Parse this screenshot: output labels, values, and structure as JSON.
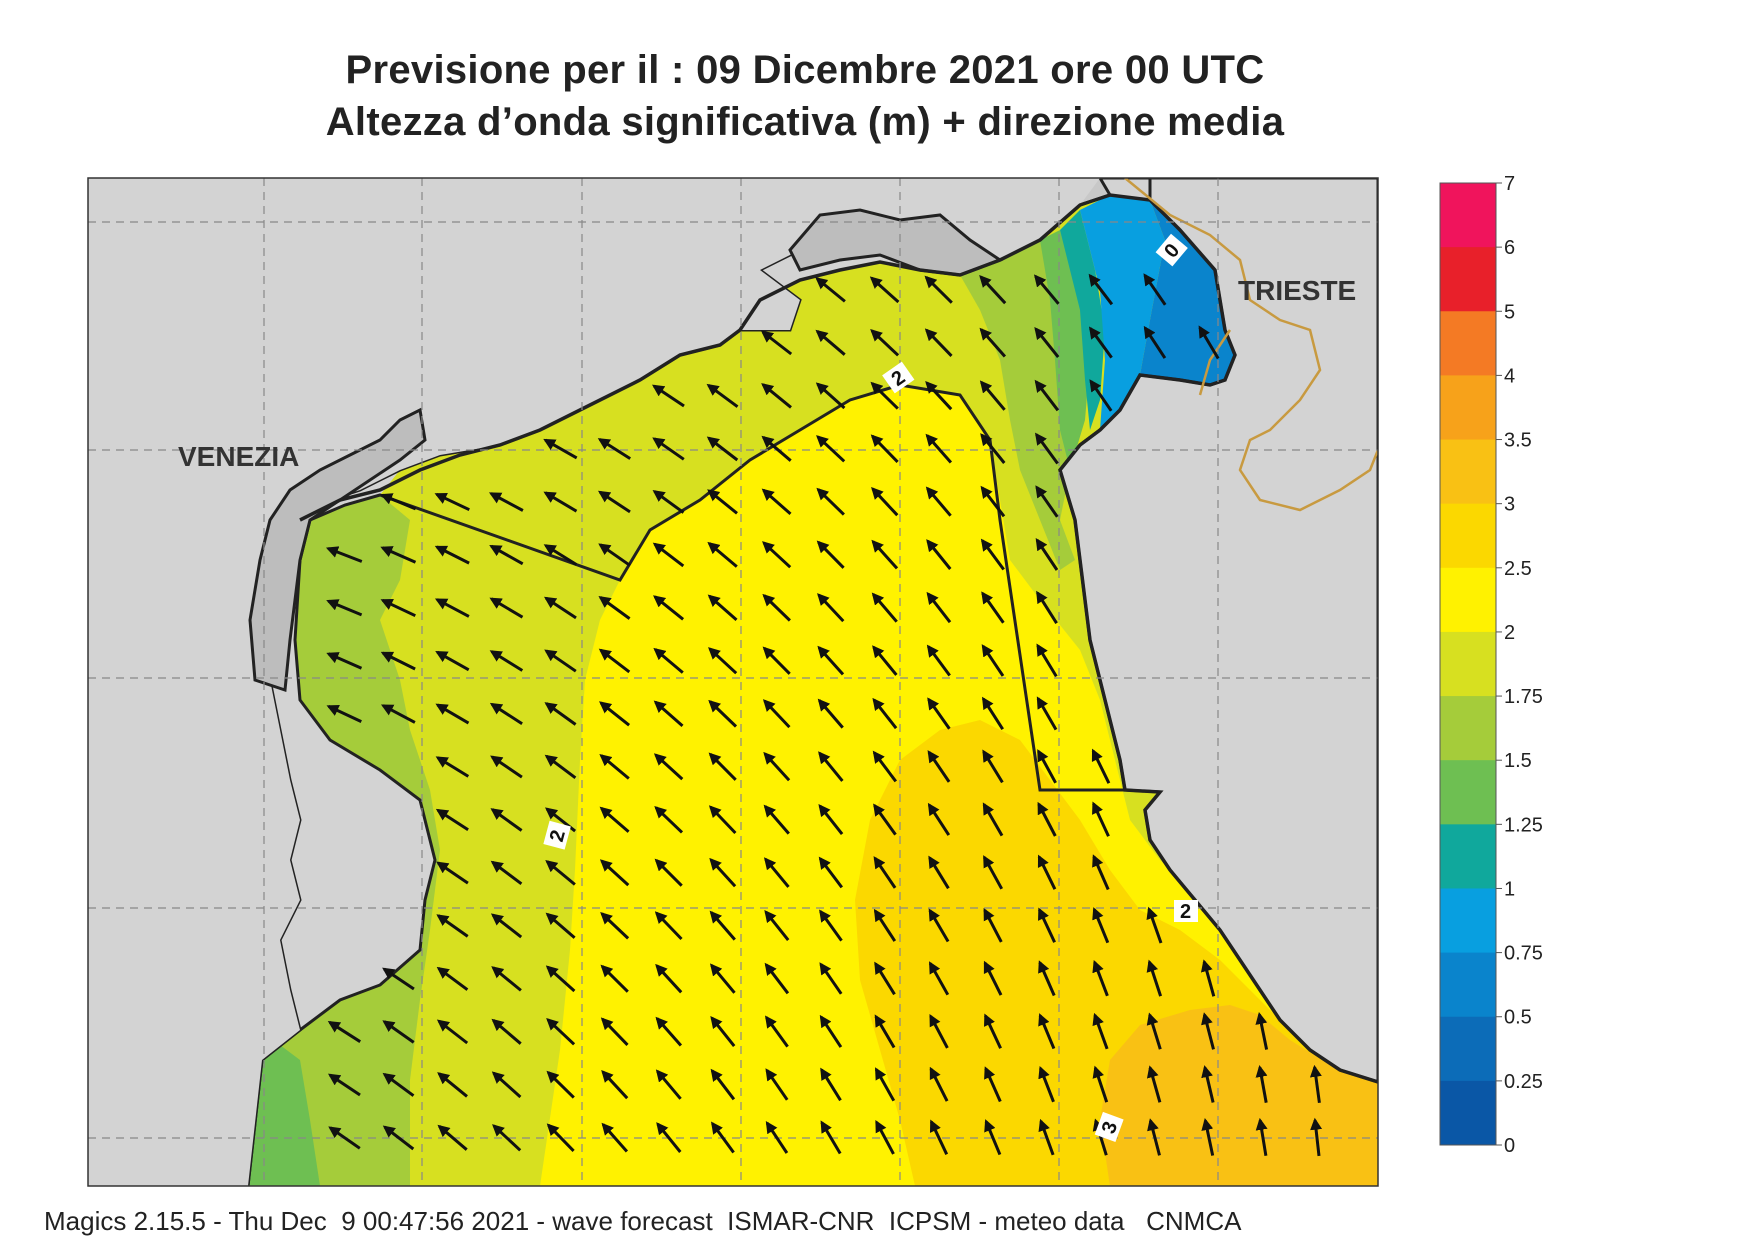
{
  "header": {
    "title_line1": "Previsione per il  :  09 Dicembre  2021   ore 00 UTC",
    "title_line2": "Altezza d’onda significativa (m) + direzione media"
  },
  "map": {
    "cities": [
      "VENEZIA",
      "TRIESTE"
    ],
    "contour_labels": [
      "2",
      "2",
      "2",
      "3",
      "0"
    ],
    "colors": {
      "land": "#cfcfcf",
      "outside": "#d3d3d3",
      "coast": "#222222",
      "border": "#c89a40",
      "grid": "#888888"
    }
  },
  "colorbar": {
    "labels": [
      "7",
      "6",
      "5",
      "4",
      "3.5",
      "3",
      "2.5",
      "2",
      "1.75",
      "1.5",
      "1.25",
      "1",
      "0.75",
      "0.5",
      "0.25",
      "0"
    ],
    "colors_top_to_bottom": [
      "#f0145c",
      "#e8202a",
      "#f47a24",
      "#f7a21a",
      "#f9c114",
      "#fbd800",
      "#fff200",
      "#d7e020",
      "#a5cc3a",
      "#6ebf52",
      "#10a89c",
      "#089fe0",
      "#0a84cc",
      "#0c6cb8",
      "#0a57a6"
    ]
  },
  "footer": {
    "text": "Magics 2.15.5 - Thu Dec  9 00:47:56 2021 - wave forecast  ISMAR-CNR  ICPSM - meteo data   CNMCA"
  }
}
